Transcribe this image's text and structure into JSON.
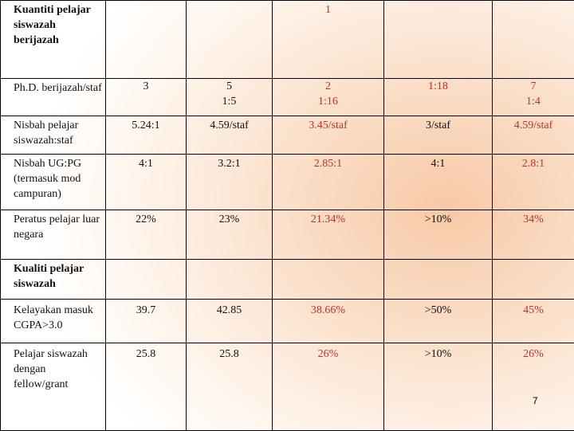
{
  "page_number": "7",
  "table": {
    "rows": [
      {
        "label": "Kuantiti pelajar siswazah berijazah",
        "label_bold": true,
        "cells": [
          {
            "text": "",
            "tone": "dark"
          },
          {
            "text": "",
            "tone": "dark"
          },
          {
            "text": "1",
            "tone": "red"
          },
          {
            "text": "",
            "tone": "red"
          },
          {
            "text": "",
            "tone": "red"
          }
        ]
      },
      {
        "label": "Ph.D. berijazah/staf",
        "label_bold": false,
        "cells": [
          {
            "text": "3",
            "tone": "dark"
          },
          {
            "text": "5\n1:5",
            "tone": "dark"
          },
          {
            "text": "2\n1:16",
            "tone": "red"
          },
          {
            "text": "1:18",
            "tone": "red"
          },
          {
            "text": "7\n1:4",
            "tone": "red"
          }
        ]
      },
      {
        "label": "Nisbah pelajar siswazah:staf",
        "label_bold": false,
        "cells": [
          {
            "text": "5.24:1",
            "tone": "dark"
          },
          {
            "text": "4.59/staf",
            "tone": "dark"
          },
          {
            "text": "3.45/staf",
            "tone": "red"
          },
          {
            "text": "3/staf",
            "tone": "dark"
          },
          {
            "text": "4.59/staf",
            "tone": "red"
          }
        ]
      },
      {
        "label": "Nisbah UG:PG (termasuk mod campuran)",
        "label_bold": false,
        "cells": [
          {
            "text": "4:1",
            "tone": "dark"
          },
          {
            "text": "3.2:1",
            "tone": "dark"
          },
          {
            "text": "2.85:1",
            "tone": "red"
          },
          {
            "text": "4:1",
            "tone": "dark"
          },
          {
            "text": "2.8:1",
            "tone": "red"
          }
        ]
      },
      {
        "label": "Peratus pelajar luar negara",
        "label_bold": false,
        "cells": [
          {
            "text": "22%",
            "tone": "dark"
          },
          {
            "text": "23%",
            "tone": "dark"
          },
          {
            "text": "21.34%",
            "tone": "red"
          },
          {
            "text": ">10%",
            "tone": "dark"
          },
          {
            "text": "34%",
            "tone": "red"
          }
        ]
      },
      {
        "label": "Kualiti pelajar siswazah",
        "label_bold": true,
        "cells": [
          {
            "text": "",
            "tone": "dark"
          },
          {
            "text": "",
            "tone": "dark"
          },
          {
            "text": "",
            "tone": "red"
          },
          {
            "text": "",
            "tone": "dark"
          },
          {
            "text": "",
            "tone": "red"
          }
        ]
      },
      {
        "label": "Kelayakan masuk CGPA>3.0",
        "label_bold": false,
        "cells": [
          {
            "text": "39.7",
            "tone": "dark"
          },
          {
            "text": "42.85",
            "tone": "dark"
          },
          {
            "text": "38.66%",
            "tone": "red"
          },
          {
            "text": ">50%",
            "tone": "dark"
          },
          {
            "text": "45%",
            "tone": "red"
          }
        ]
      },
      {
        "label": "Pelajar siswazah dengan fellow/grant",
        "label_bold": false,
        "cells": [
          {
            "text": "25.8",
            "tone": "dark"
          },
          {
            "text": "25.8",
            "tone": "dark"
          },
          {
            "text": "26%",
            "tone": "red"
          },
          {
            "text": ">10%",
            "tone": "dark"
          },
          {
            "text": "26%",
            "tone": "red"
          }
        ]
      }
    ]
  },
  "colors": {
    "text_dark": "#111111",
    "text_red": "#c0322b",
    "border": "#000000",
    "background_glow": "#f7c9a6"
  }
}
